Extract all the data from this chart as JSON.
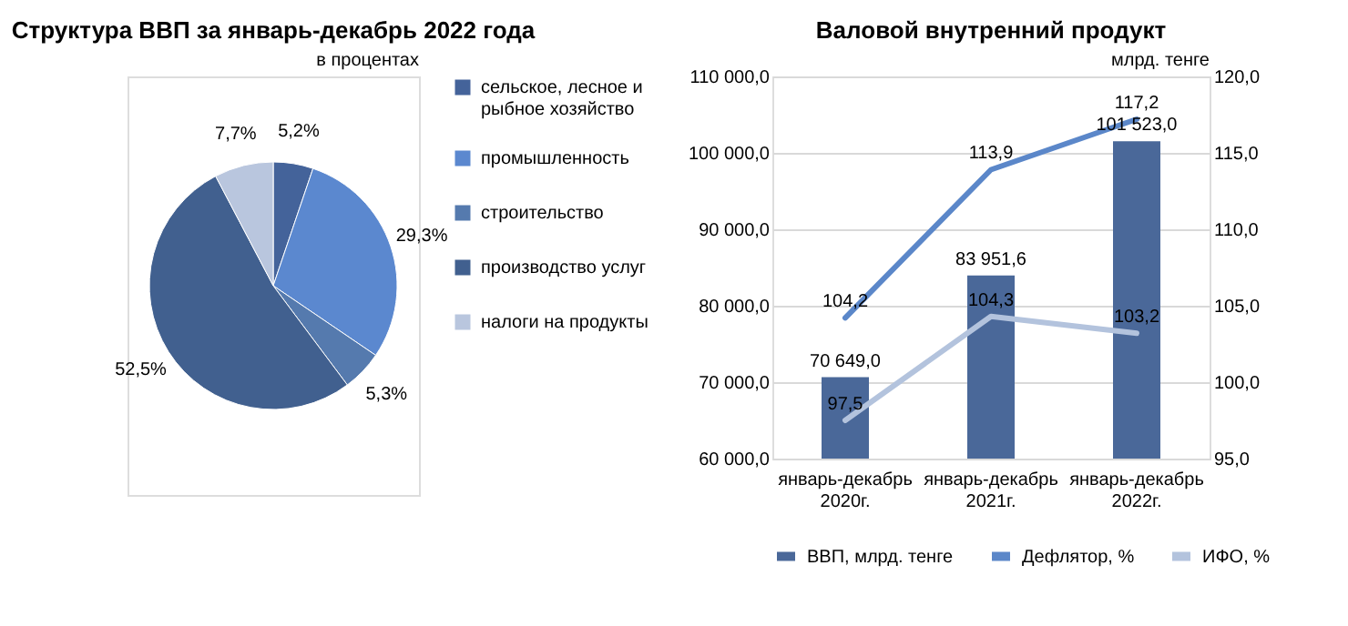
{
  "chart_data": [
    {
      "type": "pie",
      "title": "Структура ВВП за январь-декабрь 2022 года",
      "annotations": [
        "в процентах"
      ],
      "categories": [
        "сельское, лесное и рыбное хозяйство",
        "промышленность",
        "строительство",
        "производство услуг",
        "налоги на продукты"
      ],
      "values": [
        5.2,
        29.3,
        5.3,
        52.5,
        7.7
      ],
      "value_labels": [
        "5,2%",
        "29,3%",
        "5,3%",
        "52,5%",
        "7,7%"
      ],
      "colors": [
        "#44639a",
        "#5b88cf",
        "#557aae",
        "#41608f",
        "#b9c6de"
      ],
      "legend": "right"
    },
    {
      "type": "bar",
      "title": "Валовой внутренний продукт",
      "annotations": [
        "млрд. тенге"
      ],
      "categories": [
        "январь-декабрь 2020г.",
        "январь-декабрь 2021г.",
        "январь-декабрь 2022г."
      ],
      "series": [
        {
          "name": "ВВП, млрд. тенге",
          "type": "bar",
          "color": "#4a6899",
          "values": [
            70649.0,
            83951.6,
            101523.0
          ],
          "value_labels": [
            "70 649,0",
            "83 951,6",
            "101 523,0"
          ]
        },
        {
          "name": "Дефлятор, %",
          "type": "line",
          "axis": "y2",
          "color": "#5b87c9",
          "values": [
            104.2,
            113.9,
            117.2
          ],
          "value_labels": [
            "104,2",
            "113,9",
            "117,2"
          ]
        },
        {
          "name": "ИФО, %",
          "type": "line",
          "axis": "y2",
          "color": "#b3c3dd",
          "values": [
            97.5,
            104.3,
            103.2
          ],
          "value_labels": [
            "97,5",
            "104,3",
            "103,2"
          ]
        }
      ],
      "ylim": [
        60000,
        110000
      ],
      "yticks": [
        {
          "value": 60000,
          "label": "60 000,0"
        },
        {
          "value": 70000,
          "label": "70 000,0"
        },
        {
          "value": 80000,
          "label": "80 000,0"
        },
        {
          "value": 90000,
          "label": "90 000,0"
        },
        {
          "value": 100000,
          "label": "100 000,0"
        },
        {
          "value": 110000,
          "label": "110 000,0"
        }
      ],
      "y2lim": [
        95,
        120
      ],
      "y2ticks": [
        {
          "value": 95,
          "label": "95,0"
        },
        {
          "value": 100,
          "label": "100,0"
        },
        {
          "value": 105,
          "label": "105,0"
        },
        {
          "value": 110,
          "label": "110,0"
        },
        {
          "value": 115,
          "label": "115,0"
        },
        {
          "value": 120,
          "label": "120,0"
        }
      ],
      "grid": "y",
      "legend": "bottom"
    }
  ]
}
